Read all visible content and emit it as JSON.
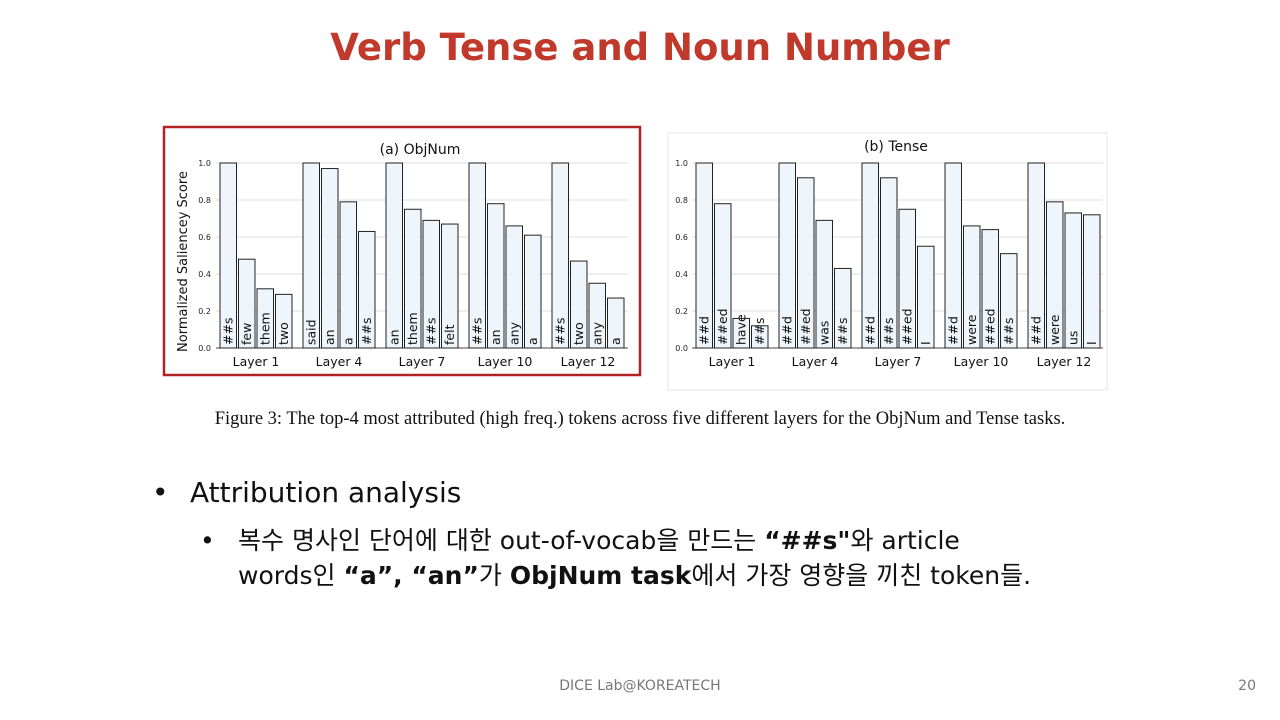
{
  "slide": {
    "title": "Verb Tense and Noun Number",
    "caption": "Figure 3: The top-4 most attributed (high freq.) tokens across five different layers for the ObjNum and Tense tasks.",
    "footer": "DICE Lab@KOREATECH",
    "page_number": "20",
    "bullets": {
      "level1": "Attribution analysis",
      "level2_line1_parts": [
        "복수 명사인 단어에 대한 out-of-vocab을 만드는 ",
        "“##s\"",
        "와 article"
      ],
      "level2_line2_parts": [
        "words인 ",
        "“a”, “an”",
        "가 ",
        "ObjNum task",
        "에서 가장 영향을 끼친 token들."
      ]
    },
    "colors": {
      "title": "#c0392b",
      "highlight_border": "#b22222",
      "bar_fill": "#eef6fc",
      "bar_stroke": "#222222"
    }
  },
  "chart_data": [
    {
      "type": "bar",
      "title": "(a) ObjNum",
      "ylabel": "Normalized Saliencey Score",
      "ylim": [
        0,
        1.0
      ],
      "yticks": [
        "0.0",
        "0.2",
        "0.4",
        "0.6",
        "0.8",
        "1.0"
      ],
      "grid": true,
      "highlighted": true,
      "groups": [
        {
          "label": "Layer 1",
          "tokens": [
            "##s",
            "few",
            "them",
            "two"
          ],
          "values": [
            1.0,
            0.48,
            0.32,
            0.29
          ]
        },
        {
          "label": "Layer 4",
          "tokens": [
            "said",
            "an",
            "a",
            "##s"
          ],
          "values": [
            1.0,
            0.97,
            0.79,
            0.63
          ]
        },
        {
          "label": "Layer 7",
          "tokens": [
            "an",
            "them",
            "##s",
            "felt"
          ],
          "values": [
            1.0,
            0.75,
            0.69,
            0.67
          ]
        },
        {
          "label": "Layer 10",
          "tokens": [
            "##s",
            "an",
            "any",
            "a"
          ],
          "values": [
            1.0,
            0.78,
            0.66,
            0.61
          ]
        },
        {
          "label": "Layer 12",
          "tokens": [
            "##s",
            "two",
            "any",
            "a"
          ],
          "values": [
            1.0,
            0.47,
            0.35,
            0.27
          ]
        }
      ]
    },
    {
      "type": "bar",
      "title": "(b) Tense",
      "ylabel": "",
      "ylim": [
        0,
        1.0
      ],
      "yticks": [
        "0.0",
        "0.2",
        "0.4",
        "0.6",
        "0.8",
        "1.0"
      ],
      "grid": true,
      "highlighted": false,
      "groups": [
        {
          "label": "Layer 1",
          "tokens": [
            "##d",
            "##ed",
            "have",
            "##s"
          ],
          "values": [
            1.0,
            0.78,
            0.16,
            0.12
          ]
        },
        {
          "label": "Layer 4",
          "tokens": [
            "##d",
            "##ed",
            "was",
            "##s"
          ],
          "values": [
            1.0,
            0.92,
            0.69,
            0.43
          ]
        },
        {
          "label": "Layer 7",
          "tokens": [
            "##d",
            "##s",
            "##ed",
            "I"
          ],
          "values": [
            1.0,
            0.92,
            0.75,
            0.55
          ]
        },
        {
          "label": "Layer 10",
          "tokens": [
            "##d",
            "were",
            "##ed",
            "##s"
          ],
          "values": [
            1.0,
            0.66,
            0.64,
            0.51
          ]
        },
        {
          "label": "Layer 12",
          "tokens": [
            "##d",
            "were",
            "us",
            "I"
          ],
          "values": [
            1.0,
            0.79,
            0.73,
            0.72
          ]
        }
      ]
    }
  ]
}
